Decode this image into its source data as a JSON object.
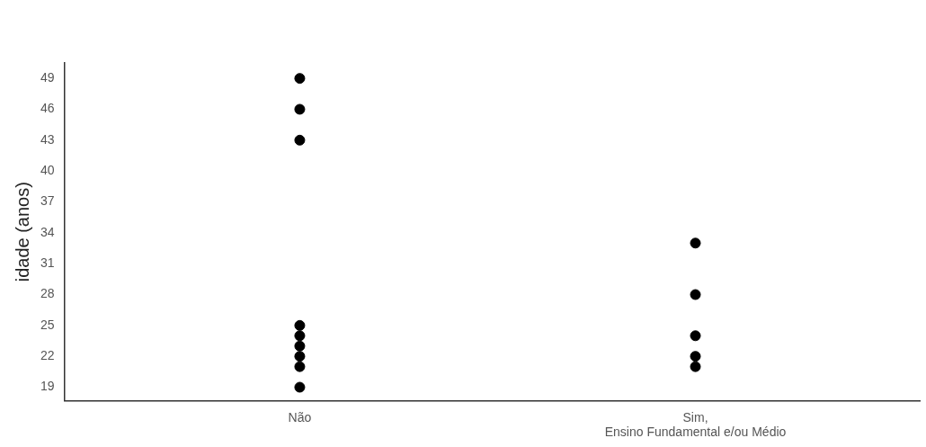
{
  "chart_data": {
    "type": "scatter",
    "ylabel": "idade (anos)",
    "categories": [
      "Não",
      "Sim,\nEnsino Fundamental e/ou Médio"
    ],
    "series": [
      {
        "color": "#000000",
        "x": [
          "Não",
          "Não",
          "Não",
          "Não",
          "Não",
          "Não",
          "Não",
          "Não",
          "Não",
          "Sim,\nEnsino Fundamental e/ou Médio",
          "Sim,\nEnsino Fundamental e/ou Médio",
          "Sim,\nEnsino Fundamental e/ou Médio",
          "Sim,\nEnsino Fundamental e/ou Médio",
          "Sim,\nEnsino Fundamental e/ou Médio"
        ],
        "values": [
          49,
          46,
          43,
          25,
          24,
          23,
          22,
          21,
          19,
          33,
          28,
          24,
          22,
          21
        ]
      }
    ],
    "ylim": [
      17.7,
      50.5
    ],
    "yticks": [
      19,
      22,
      25,
      28,
      31,
      34,
      37,
      40,
      43,
      46,
      49
    ],
    "grid": false,
    "legend": false,
    "marker": "circle"
  }
}
